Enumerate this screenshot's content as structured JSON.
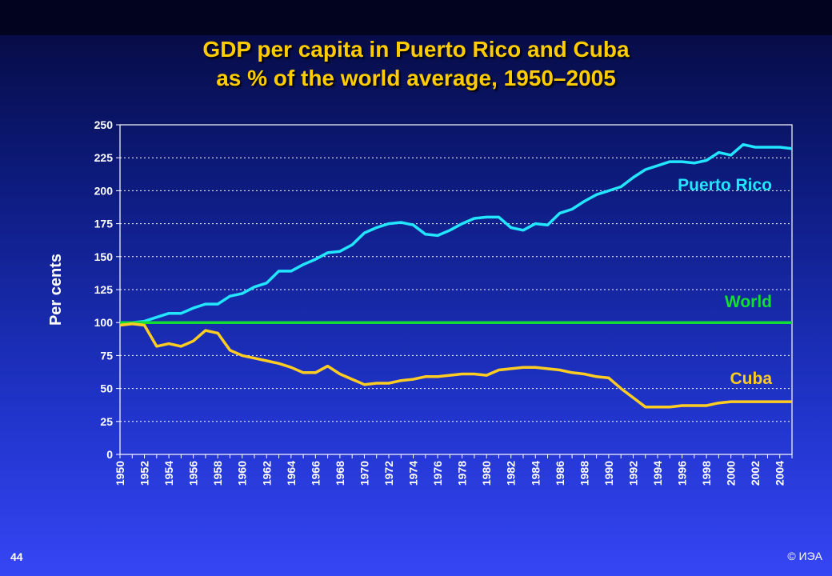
{
  "slide": {
    "title_line1": "GDP per capita in Puerto Rico and Cuba",
    "title_line2": "as % of the world average, 1950–2005",
    "page_number": "44",
    "copyright": "© ИЭА"
  },
  "chart_data": {
    "type": "line",
    "title": "GDP per capita in Puerto Rico and Cuba as % of the world average, 1950–2005",
    "xlabel": "",
    "ylabel": "Per cents",
    "xlim": [
      1950,
      2005
    ],
    "ylim": [
      0,
      250
    ],
    "yticks": [
      0,
      25,
      50,
      75,
      100,
      125,
      150,
      175,
      200,
      225,
      250
    ],
    "xticks": [
      1950,
      1952,
      1954,
      1956,
      1958,
      1960,
      1962,
      1964,
      1966,
      1968,
      1970,
      1972,
      1974,
      1976,
      1978,
      1980,
      1982,
      1984,
      1986,
      1988,
      1990,
      1992,
      1994,
      1996,
      1998,
      2000,
      2002,
      2004
    ],
    "grid": "horizontal dotted",
    "legend": "inline labels at right",
    "x": [
      1950,
      1951,
      1952,
      1953,
      1954,
      1955,
      1956,
      1957,
      1958,
      1959,
      1960,
      1961,
      1962,
      1963,
      1964,
      1965,
      1966,
      1967,
      1968,
      1969,
      1970,
      1971,
      1972,
      1973,
      1974,
      1975,
      1976,
      1977,
      1978,
      1979,
      1980,
      1981,
      1982,
      1983,
      1984,
      1985,
      1986,
      1987,
      1988,
      1989,
      1990,
      1991,
      1992,
      1993,
      1994,
      1995,
      1996,
      1997,
      1998,
      1999,
      2000,
      2001,
      2002,
      2003,
      2004,
      2005
    ],
    "series": [
      {
        "name": "Puerto Rico",
        "color": "#22e5ff",
        "values": [
          99,
          100,
          101,
          104,
          107,
          107,
          111,
          114,
          114,
          120,
          122,
          127,
          130,
          139,
          139,
          144,
          148,
          153,
          154,
          159,
          168,
          172,
          175,
          176,
          174,
          167,
          166,
          170,
          175,
          179,
          180,
          180,
          172,
          170,
          175,
          174,
          183,
          186,
          192,
          197,
          200,
          203,
          210,
          216,
          219,
          222,
          222,
          221,
          223,
          229,
          227,
          235,
          233,
          233,
          233,
          232
        ]
      },
      {
        "name": "World",
        "color": "#11dd33",
        "values": [
          100,
          100,
          100,
          100,
          100,
          100,
          100,
          100,
          100,
          100,
          100,
          100,
          100,
          100,
          100,
          100,
          100,
          100,
          100,
          100,
          100,
          100,
          100,
          100,
          100,
          100,
          100,
          100,
          100,
          100,
          100,
          100,
          100,
          100,
          100,
          100,
          100,
          100,
          100,
          100,
          100,
          100,
          100,
          100,
          100,
          100,
          100,
          100,
          100,
          100,
          100,
          100,
          100,
          100,
          100,
          100
        ]
      },
      {
        "name": "Cuba",
        "color": "#ffcc22",
        "values": [
          98,
          99,
          98,
          82,
          84,
          82,
          86,
          94,
          92,
          79,
          75,
          73,
          71,
          69,
          66,
          62,
          62,
          67,
          61,
          57,
          53,
          54,
          54,
          56,
          57,
          59,
          59,
          60,
          61,
          61,
          60,
          64,
          65,
          66,
          66,
          65,
          64,
          62,
          61,
          59,
          58,
          50,
          43,
          36,
          36,
          36,
          37,
          37,
          37,
          39,
          40,
          40,
          40,
          40,
          40,
          40
        ]
      }
    ]
  }
}
